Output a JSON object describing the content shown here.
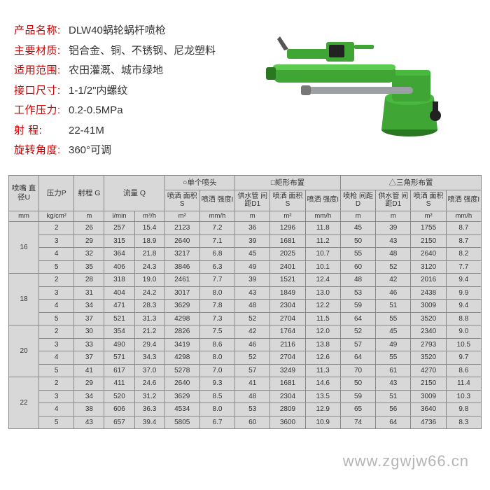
{
  "specs": [
    {
      "label": "产品名称:",
      "value": "DLW40蜗轮蜗杆喷枪"
    },
    {
      "label": "主要材质:",
      "value": "铝合金、铜、不锈钢、尼龙塑料"
    },
    {
      "label": "适用范围:",
      "value": "农田灌溉、城市绿地"
    },
    {
      "label": "接口尺寸:",
      "value": "1-1/2\"内螺纹"
    },
    {
      "label": "工作压力:",
      "value": "0.2-0.5MPa"
    },
    {
      "label": "射    程:",
      "value": "22-41M"
    },
    {
      "label": "旋转角度:",
      "value": "360°可调"
    }
  ],
  "sprinkler_colors": {
    "body": "#3fa535",
    "body_dark": "#2a7722",
    "metal": "#9aa0a3",
    "black": "#222"
  },
  "table": {
    "group_headers": {
      "diameter": "喷嘴\n直径U",
      "pressure": "压力P",
      "range": "射程\nG",
      "flow": "流量\nQ",
      "single": "○单个喷头",
      "rect": "□矩形布置",
      "tri": "△三角形布置"
    },
    "sub_headers": {
      "area": "喷洒\n面积S",
      "intensity": "喷洒\n强度I",
      "pipe_spacing": "供水管\n间距D1",
      "gun_spacing": "喷枪\n间距D"
    },
    "units": {
      "mm": "mm",
      "kgcm2": "kg/cm²",
      "m": "m",
      "lmin": "l/min",
      "m3h": "m³/h",
      "m2": "m²",
      "mmh": "mm/h"
    },
    "groups": [
      {
        "diameter": "16",
        "rows": [
          [
            "2",
            "26",
            "257",
            "15.4",
            "2123",
            "7.2",
            "36",
            "1296",
            "11.8",
            "45",
            "39",
            "1755",
            "8.7"
          ],
          [
            "3",
            "29",
            "315",
            "18.9",
            "2640",
            "7.1",
            "39",
            "1681",
            "11.2",
            "50",
            "43",
            "2150",
            "8.7"
          ],
          [
            "4",
            "32",
            "364",
            "21.8",
            "3217",
            "6.8",
            "45",
            "2025",
            "10.7",
            "55",
            "48",
            "2640",
            "8.2"
          ],
          [
            "5",
            "35",
            "406",
            "24.3",
            "3846",
            "6.3",
            "49",
            "2401",
            "10.1",
            "60",
            "52",
            "3120",
            "7.7"
          ]
        ]
      },
      {
        "diameter": "18",
        "rows": [
          [
            "2",
            "28",
            "318",
            "19.0",
            "2461",
            "7.7",
            "39",
            "1521",
            "12.4",
            "48",
            "42",
            "2016",
            "9.4"
          ],
          [
            "3",
            "31",
            "404",
            "24.2",
            "3017",
            "8.0",
            "43",
            "1849",
            "13.0",
            "53",
            "46",
            "2438",
            "9.9"
          ],
          [
            "4",
            "34",
            "471",
            "28.3",
            "3629",
            "7.8",
            "48",
            "2304",
            "12.2",
            "59",
            "51",
            "3009",
            "9.4"
          ],
          [
            "5",
            "37",
            "521",
            "31.3",
            "4298",
            "7.3",
            "52",
            "2704",
            "11.5",
            "64",
            "55",
            "3520",
            "8.8"
          ]
        ]
      },
      {
        "diameter": "20",
        "rows": [
          [
            "2",
            "30",
            "354",
            "21.2",
            "2826",
            "7.5",
            "42",
            "1764",
            "12.0",
            "52",
            "45",
            "2340",
            "9.0"
          ],
          [
            "3",
            "33",
            "490",
            "29.4",
            "3419",
            "8.6",
            "46",
            "2116",
            "13.8",
            "57",
            "49",
            "2793",
            "10.5"
          ],
          [
            "4",
            "37",
            "571",
            "34.3",
            "4298",
            "8.0",
            "52",
            "2704",
            "12.6",
            "64",
            "55",
            "3520",
            "9.7"
          ],
          [
            "5",
            "41",
            "617",
            "37.0",
            "5278",
            "7.0",
            "57",
            "3249",
            "11.3",
            "70",
            "61",
            "4270",
            "8.6"
          ]
        ]
      },
      {
        "diameter": "22",
        "rows": [
          [
            "2",
            "29",
            "411",
            "24.6",
            "2640",
            "9.3",
            "41",
            "1681",
            "14.6",
            "50",
            "43",
            "2150",
            "11.4"
          ],
          [
            "3",
            "34",
            "520",
            "31.2",
            "3629",
            "8.5",
            "48",
            "2304",
            "13.5",
            "59",
            "51",
            "3009",
            "10.3"
          ],
          [
            "4",
            "38",
            "606",
            "36.3",
            "4534",
            "8.0",
            "53",
            "2809",
            "12.9",
            "65",
            "56",
            "3640",
            "9.8"
          ],
          [
            "5",
            "43",
            "657",
            "39.4",
            "5805",
            "6.7",
            "60",
            "3600",
            "10.9",
            "74",
            "64",
            "4736",
            "8.3"
          ]
        ]
      }
    ]
  },
  "watermark": "www.zgwjw66.cn"
}
